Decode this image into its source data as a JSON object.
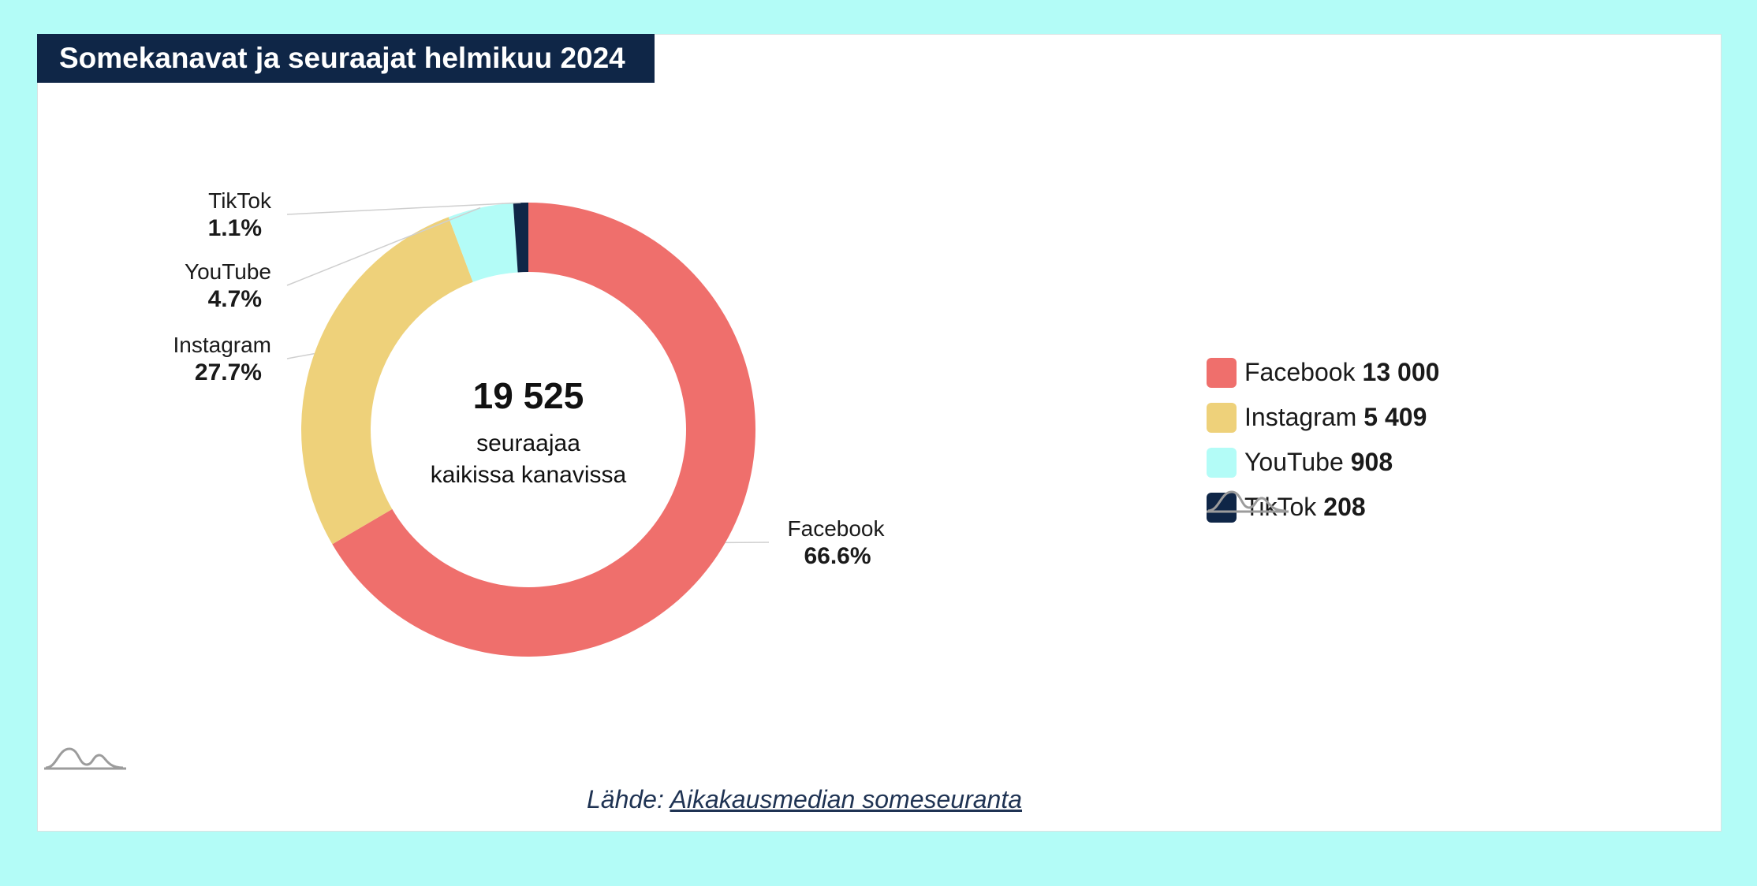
{
  "header": {
    "title": "Somekanavat ja seuraajat helmikuu 2024"
  },
  "center": {
    "total": "19 525",
    "line1": "seuraajaa",
    "line2": "kaikissa kanavissa"
  },
  "source": {
    "prefix": "Lähde: ",
    "link_label": "Aikakausmedian someseuranta"
  },
  "legend": {
    "items": [
      {
        "label": "Facebook",
        "value": "13 000"
      },
      {
        "label": "Instagram",
        "value": "5 409"
      },
      {
        "label": "YouTube",
        "value": "908"
      },
      {
        "label": "TikTok",
        "value": "208"
      }
    ]
  },
  "icons": {
    "logo": "wave-logo-icon"
  },
  "chart_data": {
    "type": "pie",
    "variant": "donut",
    "title": "Somekanavat ja seuraajat helmikuu 2024",
    "categories": [
      "Facebook",
      "Instagram",
      "YouTube",
      "TikTok"
    ],
    "values": [
      13000,
      5409,
      908,
      208
    ],
    "percent_labels": [
      "66.6%",
      "27.7%",
      "4.7%",
      "1.1%"
    ],
    "colors": [
      "#ef6f6c",
      "#eed17a",
      "#b3fcf7",
      "#0f2647"
    ],
    "center_total": "19 525",
    "legend_position": "right"
  }
}
